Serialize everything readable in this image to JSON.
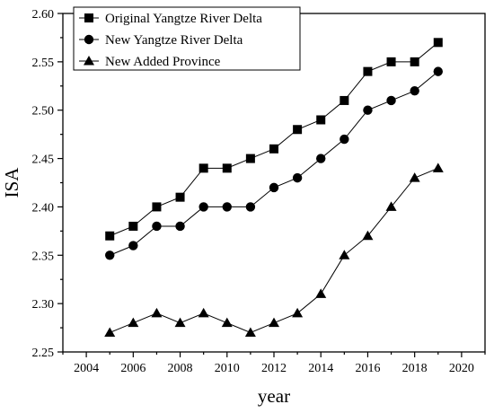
{
  "chart_data": {
    "type": "line",
    "xlabel": "year",
    "ylabel": "ISA",
    "xlim": [
      2003,
      2021
    ],
    "ylim": [
      2.25,
      2.6
    ],
    "x_ticks": [
      "2004",
      "2006",
      "2008",
      "2010",
      "2012",
      "2014",
      "2016",
      "2018",
      "2020"
    ],
    "y_ticks": [
      "2.25",
      "2.30",
      "2.35",
      "2.40",
      "2.45",
      "2.50",
      "2.55",
      "2.60"
    ],
    "x": [
      2005,
      2006,
      2007,
      2008,
      2009,
      2010,
      2011,
      2012,
      2013,
      2014,
      2015,
      2016,
      2017,
      2018,
      2019
    ],
    "series": [
      {
        "name": "Original Yangtze River Delta",
        "marker": "square",
        "values": [
          2.37,
          2.38,
          2.4,
          2.41,
          2.44,
          2.44,
          2.45,
          2.46,
          2.48,
          2.49,
          2.51,
          2.54,
          2.55,
          2.55,
          2.57
        ]
      },
      {
        "name": "New Yangtze River Delta",
        "marker": "circle",
        "values": [
          2.35,
          2.36,
          2.38,
          2.38,
          2.4,
          2.4,
          2.4,
          2.42,
          2.43,
          2.45,
          2.47,
          2.5,
          2.51,
          2.52,
          2.54
        ]
      },
      {
        "name": "New Added Province",
        "marker": "triangle",
        "values": [
          2.27,
          2.28,
          2.29,
          2.28,
          2.29,
          2.28,
          2.27,
          2.28,
          2.29,
          2.31,
          2.35,
          2.37,
          2.4,
          2.43,
          2.44
        ]
      }
    ],
    "legend_position": "top-left",
    "grid": false,
    "colors": {
      "line": "#000000",
      "marker": "#000000"
    }
  }
}
